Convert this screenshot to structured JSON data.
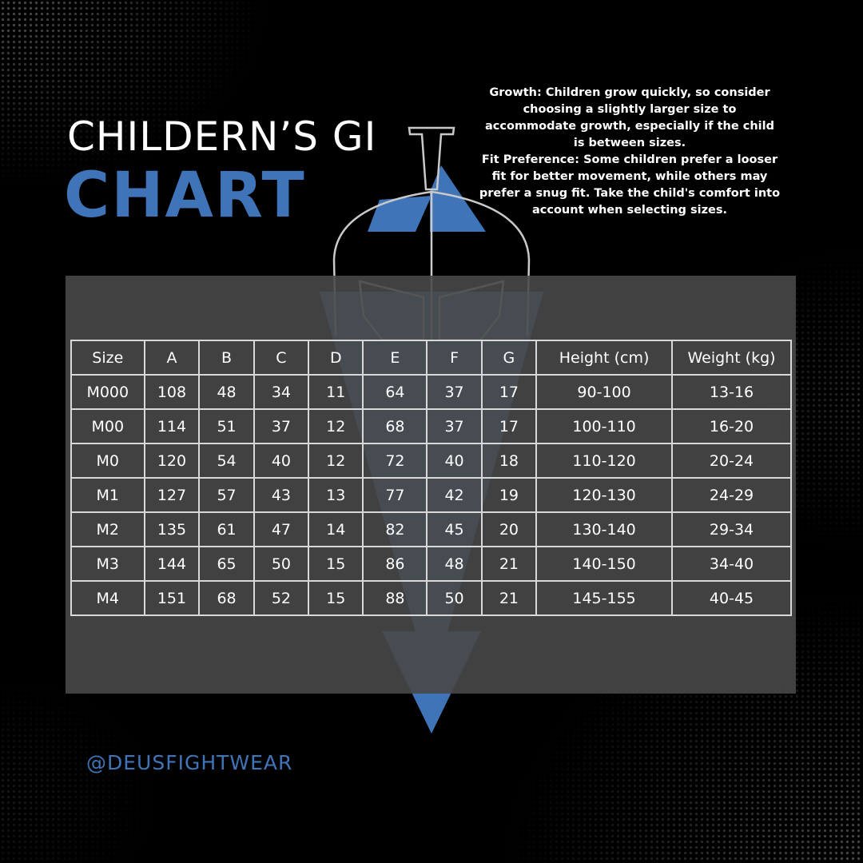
{
  "title": {
    "line1": "CHILDERN’S GI",
    "line2": "CHART"
  },
  "info": {
    "growth": "Growth: Children grow quickly, so consider choosing a slightly larger size to accommodate growth, especially if the child is between sizes.",
    "fit": "Fit Preference: Some children prefer a looser fit for better movement, while others may prefer a snug fit. Take the child's comfort into account when selecting sizes."
  },
  "table": {
    "headers": [
      "Size",
      "A",
      "B",
      "C",
      "D",
      "E",
      "F",
      "G",
      "Height (cm)",
      "Weight (kg)"
    ],
    "rows": [
      [
        "M000",
        "108",
        "48",
        "34",
        "11",
        "64",
        "37",
        "17",
        "90-100",
        "13-16"
      ],
      [
        "M00",
        "114",
        "51",
        "37",
        "12",
        "68",
        "37",
        "17",
        "100-110",
        "16-20"
      ],
      [
        "M0",
        "120",
        "54",
        "40",
        "12",
        "72",
        "40",
        "18",
        "110-120",
        "20-24"
      ],
      [
        "M1",
        "127",
        "57",
        "43",
        "13",
        "77",
        "42",
        "19",
        "120-130",
        "24-29"
      ],
      [
        "M2",
        "135",
        "61",
        "47",
        "14",
        "82",
        "45",
        "20",
        "130-140",
        "29-34"
      ],
      [
        "M3",
        "144",
        "65",
        "50",
        "15",
        "86",
        "48",
        "21",
        "140-150",
        "34-40"
      ],
      [
        "M4",
        "151",
        "68",
        "52",
        "15",
        "88",
        "50",
        "21",
        "145-155",
        "40-45"
      ]
    ]
  },
  "handle": "@DEUSFIGHTWEAR",
  "colors": {
    "accent": "#3f75b8",
    "background": "#000000",
    "panel": "#484848"
  },
  "logo": "spartan-helmet-icon"
}
